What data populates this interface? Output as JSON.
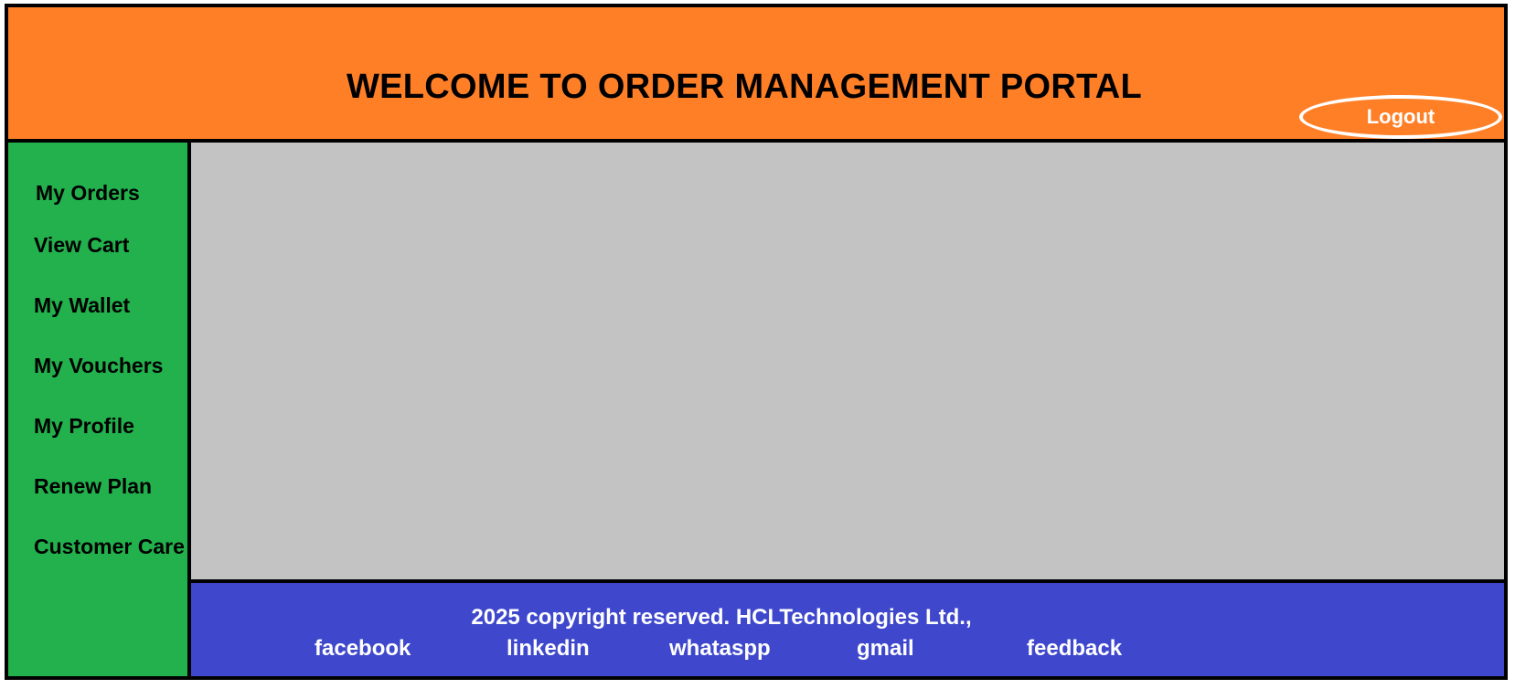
{
  "header": {
    "title": "WELCOME TO ORDER MANAGEMENT PORTAL",
    "logout_label": "Logout"
  },
  "sidebar": {
    "items": [
      {
        "label": "My Orders"
      },
      {
        "label": "View Cart"
      },
      {
        "label": "My Wallet"
      },
      {
        "label": "My Vouchers"
      },
      {
        "label": "My Profile"
      },
      {
        "label": "Renew Plan"
      },
      {
        "label": "Customer Care"
      }
    ]
  },
  "footer": {
    "copyright": "2025 copyright reserved. HCLTechnologies Ltd.,",
    "links": [
      {
        "label": "facebook"
      },
      {
        "label": "linkedin"
      },
      {
        "label": "whataspp"
      },
      {
        "label": "gmail"
      },
      {
        "label": "feedback"
      }
    ]
  },
  "colors": {
    "header_bg": "#ff7f27",
    "sidebar_bg": "#22b14c",
    "content_bg": "#c3c3c3",
    "footer_bg": "#3f48cc",
    "border": "#000000"
  }
}
